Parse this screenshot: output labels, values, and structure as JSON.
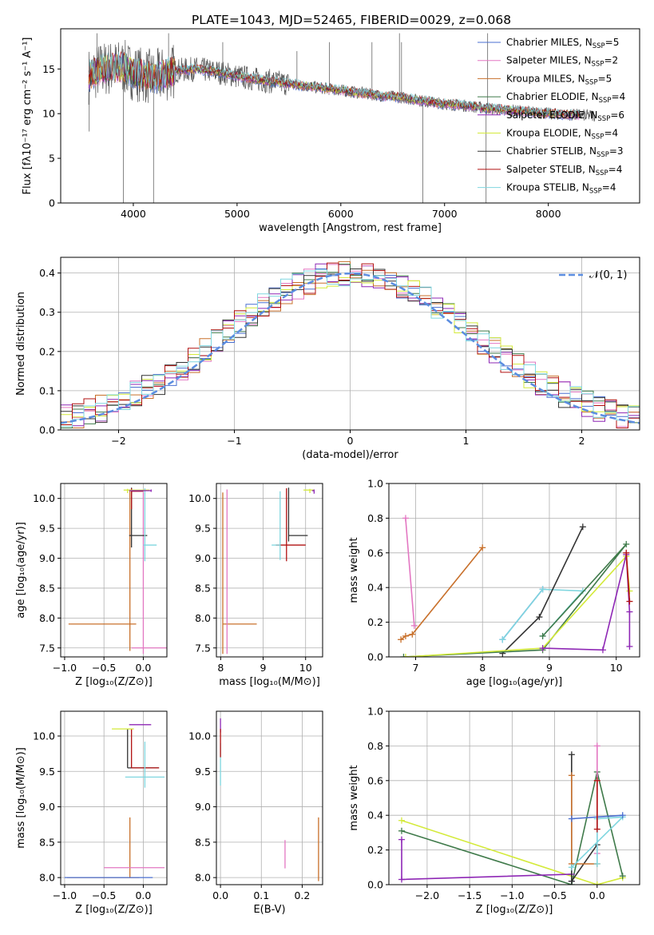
{
  "figure_title": "PLATE=1043, MJD=52465, FIBERID=0029, z=0.068",
  "colors": {
    "Chabrier MILES": "#4a6fd0",
    "Salpeter MILES": "#e377c2",
    "Kroupa MILES": "#c8702b",
    "Chabrier ELODIE": "#3f7a4a",
    "Salpeter ELODIE": "#8e27b5",
    "Kroupa ELODIE": "#d4ea3a",
    "Chabrier STELIB": "#333333",
    "Salpeter STELIB": "#b11111",
    "Kroupa STELIB": "#7fd6df",
    "gaussian": "#5b8de0",
    "grid": "#b0b0b0"
  },
  "chart_data": [
    {
      "id": "spectrum",
      "type": "line",
      "xlabel": "wavelength [Angstrom, rest frame]",
      "ylabel": "Flux [fλ10⁻¹⁷ erg cm⁻² s⁻¹ A⁻¹]",
      "xlim": [
        3300,
        8880
      ],
      "ylim": [
        0,
        19.5
      ],
      "xticks": [
        4000,
        5000,
        6000,
        7000,
        8000
      ],
      "yticks": [
        0,
        5,
        10,
        15
      ],
      "grid": false,
      "legend_position": "right",
      "legend": [
        {
          "model": "Chabrier MILES",
          "label": "Chabrier MILES, N",
          "sub": "SSP",
          "eq": "=5"
        },
        {
          "model": "Salpeter MILES",
          "label": "Salpeter MILES, N",
          "sub": "SSP",
          "eq": "=2"
        },
        {
          "model": "Kroupa MILES",
          "label": "Kroupa MILES, N",
          "sub": "SSP",
          "eq": "=5"
        },
        {
          "model": "Chabrier ELODIE",
          "label": "Chabrier ELODIE, N",
          "sub": "SSP",
          "eq": "=4"
        },
        {
          "model": "Salpeter ELODIE",
          "label": "Salpeter ELODIE, N",
          "sub": "SSP",
          "eq": "=6"
        },
        {
          "model": "Kroupa ELODIE",
          "label": "Kroupa ELODIE, N",
          "sub": "SSP",
          "eq": "=4"
        },
        {
          "model": "Chabrier STELIB",
          "label": "Chabrier STELIB, N",
          "sub": "SSP",
          "eq": "=3"
        },
        {
          "model": "Salpeter STELIB",
          "label": "Salpeter STELIB, N",
          "sub": "SSP",
          "eq": "=4"
        },
        {
          "model": "Kroupa STELIB",
          "label": "Kroupa STELIB, N",
          "sub": "SSP",
          "eq": "=4"
        }
      ],
      "continuum": [
        [
          3570,
          14.2
        ],
        [
          3700,
          15.0
        ],
        [
          3900,
          15.2
        ],
        [
          4000,
          14.6
        ],
        [
          4200,
          14.0
        ],
        [
          4400,
          14.8
        ],
        [
          4600,
          15.0
        ],
        [
          4800,
          14.7
        ],
        [
          5000,
          14.2
        ],
        [
          5200,
          13.8
        ],
        [
          5400,
          13.5
        ],
        [
          5600,
          13.2
        ],
        [
          5800,
          12.9
        ],
        [
          6000,
          12.6
        ],
        [
          6200,
          12.3
        ],
        [
          6400,
          12.0
        ],
        [
          6600,
          11.8
        ],
        [
          6800,
          11.4
        ],
        [
          7000,
          11.1
        ],
        [
          7200,
          10.9
        ],
        [
          7400,
          10.6
        ],
        [
          7600,
          10.4
        ],
        [
          7800,
          10.2
        ],
        [
          8000,
          10.0
        ],
        [
          8200,
          9.9
        ],
        [
          8400,
          9.8
        ]
      ],
      "data_range": [
        3570,
        8450
      ],
      "model_range": [
        3570,
        8300
      ],
      "spikes": [
        [
          3575,
          8
        ],
        [
          3650,
          19
        ],
        [
          3905,
          0
        ],
        [
          4195,
          0
        ],
        [
          4340,
          19
        ],
        [
          4862,
          18
        ],
        [
          5577,
          17
        ],
        [
          5890,
          18
        ],
        [
          6300,
          18
        ],
        [
          6565,
          19
        ],
        [
          6585,
          18
        ],
        [
          6790,
          0
        ],
        [
          7400,
          0
        ],
        [
          7415,
          19
        ]
      ]
    },
    {
      "id": "residuals",
      "type": "area",
      "xlabel": "(data-model)/error",
      "ylabel": "Normed distribution",
      "xlim": [
        -2.5,
        2.5
      ],
      "ylim": [
        0,
        0.44
      ],
      "xticks": [
        -2,
        -1,
        0,
        1,
        2
      ],
      "yticks": [
        0.0,
        0.1,
        0.2,
        0.3,
        0.4
      ],
      "grid": true,
      "legend_position": "top-right",
      "legend": "𝒩(0, 1)",
      "bin_width": 0.1
    },
    {
      "id": "age_vs_Z",
      "type": "scatter",
      "xlabel": "Z [log₁₀(Z/Z⊙)]",
      "ylabel": "age  [log₁₀(age/yr)]",
      "xlim": [
        -1.05,
        0.3
      ],
      "ylim": [
        7.35,
        10.25
      ],
      "xticks": [
        -1.0,
        -0.5,
        0.0
      ],
      "yticks": [
        7.5,
        8.0,
        8.5,
        9.0,
        9.5,
        10.0
      ],
      "grid": true,
      "errorbars": [
        {
          "model": "Kroupa MILES",
          "x": -0.17,
          "xerr": [
            0.78,
            0.08
          ],
          "y": 7.9,
          "yerr": [
            0.45,
            2.25
          ]
        },
        {
          "model": "Salpeter MILES",
          "x": 0.0,
          "xerr": [
            0.15,
            0.35
          ],
          "y": 7.5,
          "yerr": [
            0.1,
            2.6
          ]
        },
        {
          "model": "Chabrier STELIB",
          "x": -0.15,
          "xerr": [
            0.03,
            0.2
          ],
          "y": 9.38,
          "yerr": [
            0.2,
            0.8
          ]
        },
        {
          "model": "Salpeter STELIB",
          "x": -0.15,
          "xerr": [
            0.0,
            0.15
          ],
          "y": 10.12,
          "yerr": [
            0.3,
            0.05
          ]
        },
        {
          "model": "Kroupa ELODIE",
          "x": -0.2,
          "xerr": [
            0.05,
            0.28
          ],
          "y": 10.14,
          "yerr": [
            0.05,
            0.02
          ]
        },
        {
          "model": "Kroupa STELIB",
          "x": 0.02,
          "xerr": [
            0.02,
            0.15
          ],
          "y": 9.22,
          "yerr": [
            0.27,
            0.95
          ]
        },
        {
          "model": "Salpeter ELODIE",
          "x": 0.1,
          "xerr": [
            0.28,
            0.0
          ],
          "y": 10.13,
          "yerr": [
            0.02,
            0.02
          ]
        }
      ]
    },
    {
      "id": "age_vs_mass",
      "type": "scatter",
      "xlabel": "mass [log₁₀(M/M⊙)]",
      "ylabel": "",
      "xlim": [
        7.9,
        10.4
      ],
      "ylim": [
        7.35,
        10.25
      ],
      "xticks": [
        8,
        9,
        10
      ],
      "yticks": [
        7.5,
        8.0,
        8.5,
        9.0,
        9.5,
        10.0
      ],
      "grid": true,
      "errorbars": [
        {
          "model": "Kroupa MILES",
          "x": 8.05,
          "xerr": [
            0.0,
            0.8
          ],
          "y": 7.9,
          "yerr": [
            0.5,
            2.2
          ]
        },
        {
          "model": "Salpeter MILES",
          "x": 8.15,
          "xerr": [
            0.0,
            0.0
          ],
          "y": 7.5,
          "yerr": [
            0.1,
            2.65
          ]
        },
        {
          "model": "Salpeter STELIB",
          "x": 9.55,
          "xerr": [
            0.25,
            0.45
          ],
          "y": 9.22,
          "yerr": [
            0.27,
            0.95
          ]
        },
        {
          "model": "Chabrier STELIB",
          "x": 9.6,
          "xerr": [
            0.0,
            0.45
          ],
          "y": 9.38,
          "yerr": [
            0.1,
            0.8
          ]
        },
        {
          "model": "Kroupa STELIB",
          "x": 9.4,
          "xerr": [
            0.2,
            0.0
          ],
          "y": 9.22,
          "yerr": [
            0.25,
            0.9
          ]
        },
        {
          "model": "Kroupa ELODIE",
          "x": 10.1,
          "xerr": [
            0.15,
            0.1
          ],
          "y": 10.14,
          "yerr": [
            0.05,
            0.02
          ]
        },
        {
          "model": "Salpeter ELODIE",
          "x": 10.2,
          "xerr": [
            0.05,
            0.0
          ],
          "y": 10.13,
          "yerr": [
            0.05,
            0.02
          ]
        }
      ]
    },
    {
      "id": "weight_vs_age",
      "type": "line",
      "xlabel": "age  [log₁₀(age/yr)]",
      "ylabel": "mass weight",
      "xlim": [
        6.6,
        10.35
      ],
      "ylim": [
        0.0,
        1.0
      ],
      "xticks": [
        7,
        8,
        9,
        10
      ],
      "yticks": [
        0.0,
        0.2,
        0.4,
        0.6,
        0.8,
        1.0
      ],
      "grid": true,
      "series": [
        {
          "model": "Salpeter MILES",
          "x": [
            6.85,
            6.98
          ],
          "y": [
            0.8,
            0.18
          ]
        },
        {
          "model": "Kroupa MILES",
          "x": [
            6.78,
            6.85,
            6.95,
            8.0
          ],
          "y": [
            0.1,
            0.12,
            0.13,
            0.63
          ]
        },
        {
          "model": "Chabrier MILES",
          "x": [
            8.3,
            8.9
          ],
          "y": [
            0.1,
            0.39
          ]
        },
        {
          "model": "Kroupa STELIB",
          "x": [
            8.3,
            8.9,
            9.5,
            8.9
          ],
          "y": [
            0.1,
            0.39,
            0.38,
            0.12
          ]
        },
        {
          "model": "Chabrier STELIB",
          "x": [
            8.3,
            8.85,
            9.5
          ],
          "y": [
            0.02,
            0.23,
            0.75
          ]
        },
        {
          "model": "Chabrier ELODIE",
          "x": [
            6.82,
            8.9,
            10.15,
            8.9
          ],
          "y": [
            0.0,
            0.04,
            0.65,
            0.12
          ]
        },
        {
          "model": "Kroupa ELODIE",
          "x": [
            6.85,
            8.9,
            10.15,
            10.2
          ],
          "y": [
            0.0,
            0.05,
            0.58,
            0.38
          ]
        },
        {
          "model": "Salpeter ELODIE",
          "x": [
            8.9,
            9.8,
            10.15,
            10.2,
            10.2
          ],
          "y": [
            0.05,
            0.04,
            0.59,
            0.26,
            0.06
          ]
        },
        {
          "model": "Salpeter STELIB",
          "x": [
            10.15,
            10.2
          ],
          "y": [
            0.6,
            0.32
          ]
        }
      ]
    },
    {
      "id": "mass_vs_Z",
      "type": "scatter",
      "xlabel": "Z [log₁₀(Z/Z⊙)]",
      "ylabel": "mass [log₁₀(M/M⊙)]",
      "xlim": [
        -1.05,
        0.3
      ],
      "ylim": [
        7.9,
        10.35
      ],
      "xticks": [
        -1.0,
        -0.5,
        0.0
      ],
      "yticks": [
        8.0,
        8.5,
        9.0,
        9.5,
        10.0
      ],
      "grid": true,
      "errorbars": [
        {
          "model": "Kroupa MILES",
          "x": -0.17,
          "xerr": [
            0.8,
            0.12
          ],
          "y": 8.0,
          "yerr": [
            0.0,
            0.85
          ]
        },
        {
          "model": "Salpeter MILES",
          "x": 0.0,
          "xerr": [
            0.5,
            0.27
          ],
          "y": 8.14,
          "yerr": [
            0.0,
            0.0
          ]
        },
        {
          "model": "Chabrier MILES",
          "x": -0.5,
          "xerr": [
            0.5,
            0.62
          ],
          "y": 8.0,
          "yerr": [
            0.0,
            0.0
          ]
        },
        {
          "model": "Chabrier STELIB",
          "x": -0.2,
          "xerr": [
            0.0,
            0.4
          ],
          "y": 9.55,
          "yerr": [
            0.0,
            0.55
          ]
        },
        {
          "model": "Salpeter STELIB",
          "x": -0.15,
          "xerr": [
            0.0,
            0.35
          ],
          "y": 9.55,
          "yerr": [
            0.0,
            0.55
          ]
        },
        {
          "model": "Kroupa STELIB",
          "x": 0.02,
          "xerr": [
            0.25,
            0.25
          ],
          "y": 9.42,
          "yerr": [
            0.15,
            0.5
          ]
        },
        {
          "model": "Salpeter ELODIE",
          "x": 0.1,
          "xerr": [
            0.28,
            0.0
          ],
          "y": 10.16,
          "yerr": [
            0.0,
            0.0
          ]
        },
        {
          "model": "Kroupa ELODIE",
          "x": -0.2,
          "xerr": [
            0.2,
            0.08
          ],
          "y": 10.1,
          "yerr": [
            0.0,
            0.0
          ]
        }
      ]
    },
    {
      "id": "mass_vs_ebv",
      "type": "scatter",
      "xlabel": "E(B-V)",
      "ylabel": "",
      "xlim": [
        -0.01,
        0.25
      ],
      "ylim": [
        7.9,
        10.35
      ],
      "xticks": [
        0.0,
        0.1,
        0.2
      ],
      "yticks": [
        8.0,
        8.5,
        9.0,
        9.5,
        10.0
      ],
      "grid": true,
      "errorbars": [
        {
          "model": "Kroupa MILES",
          "x": 0.24,
          "xerr": [
            0.0,
            0.0
          ],
          "y": 8.4,
          "yerr": [
            0.45,
            0.45
          ]
        },
        {
          "model": "Salpeter MILES",
          "x": 0.158,
          "xerr": [
            0.0,
            0.0
          ],
          "y": 8.33,
          "yerr": [
            0.2,
            0.2
          ]
        },
        {
          "model": "Salpeter ELODIE",
          "x": 0.0,
          "xerr": [
            0.0,
            0.0
          ],
          "y": 10.15,
          "yerr": [
            0.1,
            0.1
          ]
        },
        {
          "model": "Kroupa STELIB",
          "x": 0.0,
          "xerr": [
            0.0,
            0.0
          ],
          "y": 9.6,
          "yerr": [
            0.3,
            0.3
          ]
        },
        {
          "model": "Salpeter STELIB",
          "x": 0.0,
          "xerr": [
            0.0,
            0.0
          ],
          "y": 9.9,
          "yerr": [
            0.2,
            0.2
          ]
        }
      ]
    },
    {
      "id": "weight_vs_Z",
      "type": "line",
      "xlabel": "Z [log₁₀(Z/Z⊙)]",
      "ylabel": "mass weight",
      "xlim": [
        -2.45,
        0.5
      ],
      "ylim": [
        0.0,
        1.0
      ],
      "xticks": [
        -2.0,
        -1.5,
        -1.0,
        -0.5,
        0.0
      ],
      "yticks": [
        0.0,
        0.2,
        0.4,
        0.6,
        0.8,
        1.0
      ],
      "grid": true,
      "series": [
        {
          "model": "Kroupa ELODIE",
          "x": [
            -2.3,
            0.0,
            0.3
          ],
          "y": [
            0.37,
            0.0,
            0.04
          ]
        },
        {
          "model": "Chabrier ELODIE",
          "x": [
            -2.3,
            -0.3,
            0.0,
            0.3
          ],
          "y": [
            0.31,
            0.0,
            0.65,
            0.05
          ]
        },
        {
          "model": "Salpeter ELODIE",
          "x": [
            -2.3,
            -2.3,
            -0.3,
            -0.3
          ],
          "y": [
            0.26,
            0.03,
            0.06,
            0.02
          ]
        },
        {
          "model": "Chabrier STELIB",
          "x": [
            -0.3,
            -0.3,
            0.0
          ],
          "y": [
            0.75,
            0.02,
            0.23
          ]
        },
        {
          "model": "Kroupa MILES",
          "x": [
            -0.3,
            -0.3,
            0.0
          ],
          "y": [
            0.63,
            0.12,
            0.12
          ]
        },
        {
          "model": "Salpeter MILES",
          "x": [
            0.0,
            0.0
          ],
          "y": [
            0.8,
            0.18
          ]
        },
        {
          "model": "Kroupa STELIB",
          "x": [
            -0.3,
            0.3,
            0.0,
            0.0
          ],
          "y": [
            0.1,
            0.39,
            0.38,
            0.12
          ]
        },
        {
          "model": "Chabrier MILES",
          "x": [
            -0.3,
            0.3
          ],
          "y": [
            0.38,
            0.4
          ]
        },
        {
          "model": "Salpeter STELIB",
          "x": [
            0.0,
            0.0
          ],
          "y": [
            0.6,
            0.32
          ]
        }
      ]
    }
  ]
}
